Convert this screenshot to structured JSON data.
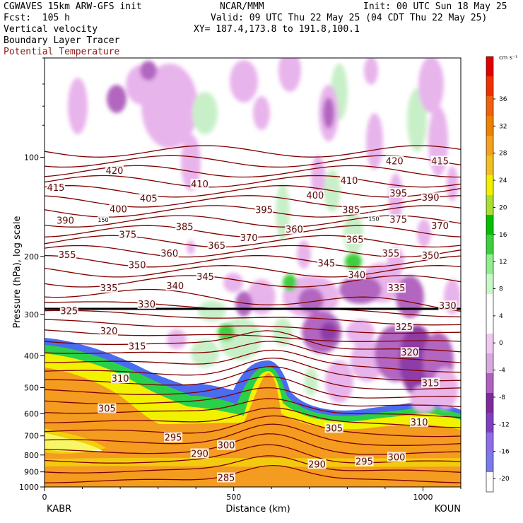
{
  "header": {
    "model": "CGWAVES 15km ARW-GFS init",
    "forecast": "Fcst:  105 h",
    "org": "NCAR/MMM",
    "init": "Init: 00 UTC Sun 18 May 25",
    "valid": "Valid: 09 UTC Thu 22 May 25 (04 CDT Thu 22 May 25)",
    "xy": "XY= 187.4,173.8 to 191.8,100.1",
    "field1": "Vertical velocity",
    "field2": "Boundary Layer Tracer",
    "field3": "Potential Temperature"
  },
  "colors": {
    "contour": "#800000",
    "axis": "#000000"
  },
  "chart_data": {
    "type": "heatmap",
    "xlabel": "Distance (km)",
    "ylabel": "Pressure (hPa), log scale",
    "xlim": [
      0,
      1100
    ],
    "ylim": [
      1000,
      50
    ],
    "x_ticks": [
      0,
      500,
      1000
    ],
    "y_ticks": [
      100,
      200,
      300,
      400,
      500,
      600,
      700,
      800,
      900,
      1000
    ],
    "x_end_labels": {
      "left": "KABR",
      "right": "KOUN"
    },
    "colorbar": {
      "units": "cm s⁻¹",
      "levels": [
        -20,
        -16,
        -12,
        -8,
        -4,
        0,
        4,
        8,
        12,
        16,
        20,
        24,
        28,
        32,
        36
      ],
      "colors": [
        "#ffffff",
        "#7a7aee",
        "#8e6ee8",
        "#7e40c0",
        "#7e2a9a",
        "#b060c0",
        "#d8a8e0",
        "#f0c8f0",
        "#ffffff",
        "#ffffff",
        "#c8f8c8",
        "#90ee90",
        "#3cd03c",
        "#00c000",
        "#a8e030",
        "#f0f000",
        "#f0c020",
        "#f4a020",
        "#f08000",
        "#f06010",
        "#f03000",
        "#e00000"
      ]
    },
    "theta_labels": [
      {
        "value": "415",
        "x": 30,
        "p": 124
      },
      {
        "value": "420",
        "x": 185,
        "p": 110
      },
      {
        "value": "405",
        "x": 275,
        "p": 134
      },
      {
        "value": "410",
        "x": 410,
        "p": 121
      },
      {
        "value": "400",
        "x": 195,
        "p": 144
      },
      {
        "value": "390",
        "x": 55,
        "p": 156
      },
      {
        "value": "375",
        "x": 220,
        "p": 172
      },
      {
        "value": "385",
        "x": 370,
        "p": 163
      },
      {
        "value": "395",
        "x": 580,
        "p": 145
      },
      {
        "value": "400",
        "x": 715,
        "p": 131
      },
      {
        "value": "410",
        "x": 805,
        "p": 118
      },
      {
        "value": "420",
        "x": 925,
        "p": 103
      },
      {
        "value": "415",
        "x": 1045,
        "p": 103
      },
      {
        "value": "395",
        "x": 935,
        "p": 129
      },
      {
        "value": "390",
        "x": 1020,
        "p": 133
      },
      {
        "value": "385",
        "x": 810,
        "p": 145
      },
      {
        "value": "375",
        "x": 935,
        "p": 155
      },
      {
        "value": "370",
        "x": 1045,
        "p": 162
      },
      {
        "value": "360",
        "x": 660,
        "p": 166
      },
      {
        "value": "365",
        "x": 820,
        "p": 178
      },
      {
        "value": "370",
        "x": 540,
        "p": 176
      },
      {
        "value": "365",
        "x": 455,
        "p": 186
      },
      {
        "value": "360",
        "x": 330,
        "p": 196
      },
      {
        "value": "355",
        "x": 60,
        "p": 198
      },
      {
        "value": "350",
        "x": 245,
        "p": 213
      },
      {
        "value": "345",
        "x": 745,
        "p": 210
      },
      {
        "value": "355",
        "x": 915,
        "p": 196
      },
      {
        "value": "350",
        "x": 1020,
        "p": 199
      },
      {
        "value": "345",
        "x": 425,
        "p": 231
      },
      {
        "value": "340",
        "x": 345,
        "p": 246
      },
      {
        "value": "340",
        "x": 825,
        "p": 228
      },
      {
        "value": "335",
        "x": 170,
        "p": 250
      },
      {
        "value": "335",
        "x": 930,
        "p": 250
      },
      {
        "value": "330",
        "x": 270,
        "p": 280
      },
      {
        "value": "330",
        "x": 1065,
        "p": 283
      },
      {
        "value": "325",
        "x": 65,
        "p": 293
      },
      {
        "value": "325",
        "x": 950,
        "p": 328
      },
      {
        "value": "320",
        "x": 170,
        "p": 338
      },
      {
        "value": "320",
        "x": 965,
        "p": 392
      },
      {
        "value": "315",
        "x": 245,
        "p": 375
      },
      {
        "value": "315",
        "x": 1020,
        "p": 485
      },
      {
        "value": "310",
        "x": 200,
        "p": 470
      },
      {
        "value": "310",
        "x": 990,
        "p": 638
      },
      {
        "value": "305",
        "x": 165,
        "p": 580
      },
      {
        "value": "305",
        "x": 765,
        "p": 665
      },
      {
        "value": "300",
        "x": 480,
        "p": 750
      },
      {
        "value": "300",
        "x": 930,
        "p": 815
      },
      {
        "value": "295",
        "x": 340,
        "p": 710
      },
      {
        "value": "295",
        "x": 845,
        "p": 840
      },
      {
        "value": "290",
        "x": 410,
        "p": 795
      },
      {
        "value": "290",
        "x": 720,
        "p": 855
      },
      {
        "value": "285",
        "x": 480,
        "p": 940
      },
      {
        "value": "150",
        "x": 155,
        "p": 154
      },
      {
        "value": "150",
        "x": 870,
        "p": 153
      }
    ]
  }
}
